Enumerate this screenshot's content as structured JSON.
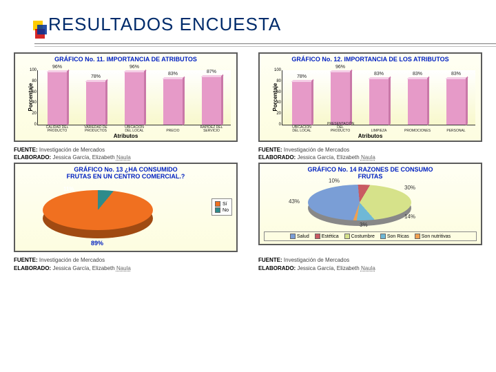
{
  "title": "RESULTADOS ENCUESTA",
  "credit_fuente_label": "FUENTE:",
  "credit_fuente_value": "Investigación de Mercados",
  "credit_elab_label": "ELABORADO:",
  "credit_elab_value_a": "Jessica García, Elizabeth ",
  "credit_elab_value_b": "Naula",
  "chart1": {
    "title": "GRÁFICO No. 11. IMPORTANCIA DE ATRIBUTOS",
    "ylabel": "Porcentaje",
    "xlabel": "Atributos",
    "ylim": [
      0,
      100
    ],
    "ytick_step": 20,
    "bar_color": "#e69ac8",
    "bar_top": "#f4cde6",
    "bar_side": "#c978a8",
    "background": "#fdfde0",
    "cats": [
      "CALIDAD DEL PRODUCTO",
      "VARIEDAD DE PRODUCTOS",
      "UBICACIÓN DEL LOCAL",
      "PRECIO",
      "RAPIDEZ DEL SERVICIO"
    ],
    "values": [
      96,
      78,
      96,
      83,
      87
    ],
    "labels": [
      "96%",
      "78%",
      "96%",
      "83%",
      "87%"
    ]
  },
  "chart2": {
    "title": "GRÁFICO No. 12. IMPORTANCIA DE LOS ATRIBUTOS",
    "ylabel": "Porcentaje",
    "xlabel": "Atributos",
    "ylim": [
      0,
      100
    ],
    "ytick_step": 20,
    "bar_color": "#e69ac8",
    "bar_top": "#f4cde6",
    "bar_side": "#c978a8",
    "background": "#fdfde0",
    "cats": [
      "UBICACIÓN DEL LOCAL",
      "PRESENTACIÓN DEL PRODUCTO",
      "LIMPIEZA",
      "PROMOCIONES",
      "PERSONAL"
    ],
    "values": [
      78,
      96,
      83,
      83,
      83
    ],
    "labels": [
      "78%",
      "96%",
      "83%",
      "83%",
      "83%"
    ]
  },
  "chart3": {
    "title1": "GRÁFICO No. 13 ¿HA CONSUMIDO",
    "title2": "FRUTAS EN UN CENTRO COMERCIAL.?",
    "background": "#fdfde0",
    "slice_colors": [
      "#f07020",
      "#2e8b8b"
    ],
    "labels": [
      "Sí",
      "No"
    ],
    "values": [
      89,
      11
    ],
    "value_text_yes": "89%",
    "value_text_no": "11%"
  },
  "chart4": {
    "title1": "GRÁFICO No. 14 RAZONES DE CONSUMO",
    "title2": "FRUTAS",
    "background": "#fdfde0",
    "labels": [
      "Salud",
      "Estética",
      "Costumbre",
      "Son Ricas",
      "Son nutritivas"
    ],
    "colors": [
      "#7a9ed6",
      "#c95a62",
      "#d6e28a",
      "#6fb8d6",
      "#f0a050"
    ],
    "values": [
      43,
      10,
      30,
      14,
      3
    ],
    "value_texts": [
      "43%",
      "10%",
      "30%",
      "14%",
      "3%"
    ]
  }
}
